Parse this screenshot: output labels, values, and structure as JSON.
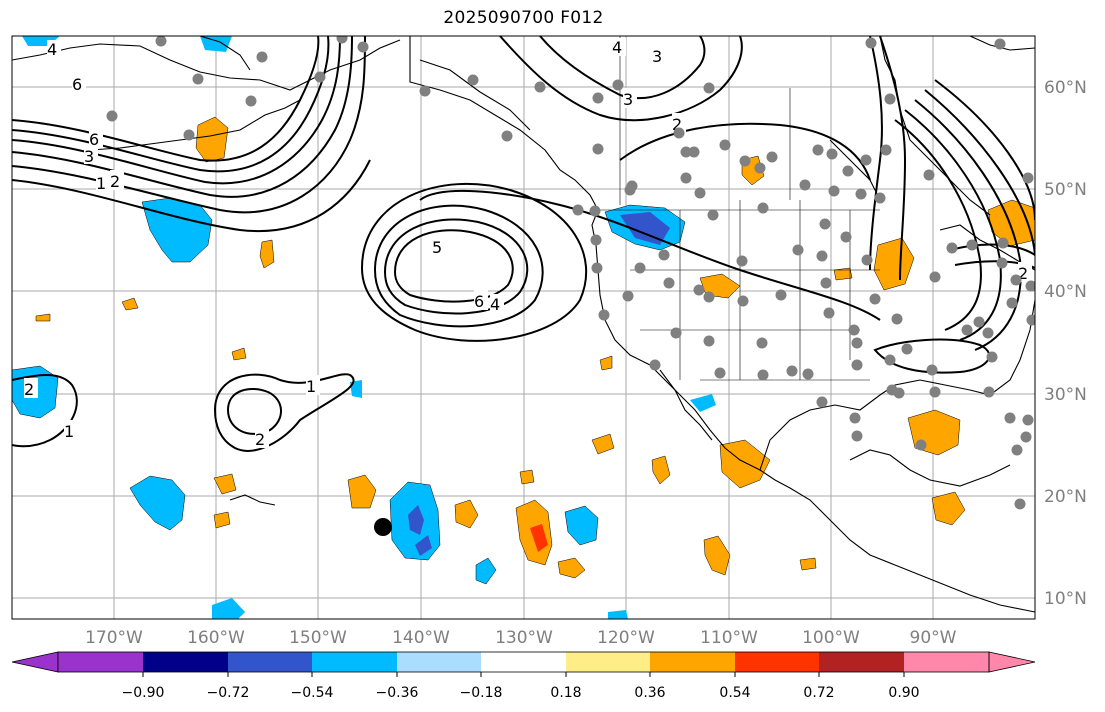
{
  "title": "2025090700 F012",
  "lon_labels": [
    "170°W",
    "160°W",
    "150°W",
    "140°W",
    "130°W",
    "120°W",
    "110°W",
    "100°W",
    "90°W"
  ],
  "lat_labels": [
    "60°N",
    "50°N",
    "40°N",
    "30°N",
    "20°N",
    "10°N"
  ],
  "colorbar": {
    "colors": [
      "#9933cc",
      "#000088",
      "#3355cc",
      "#00bbff",
      "#aaddff",
      "#ffffff",
      "#ffee88",
      "#ffa500",
      "#ff3300",
      "#b22222",
      "#ff88aa"
    ],
    "labels": [
      "−0.90",
      "−0.72",
      "−0.54",
      "−0.36",
      "−0.18",
      "0.18",
      "0.36",
      "0.54",
      "0.72",
      "0.90"
    ]
  },
  "contour_labels": [
    "6",
    "4",
    "6",
    "3",
    "1",
    "2",
    "3",
    "4",
    "3",
    "2",
    "5",
    "6",
    "4",
    "2",
    "1",
    "2",
    "1",
    "2"
  ],
  "colors": {
    "stations": "#808080",
    "coast": "#000000",
    "grid": "#aaaaaa"
  }
}
